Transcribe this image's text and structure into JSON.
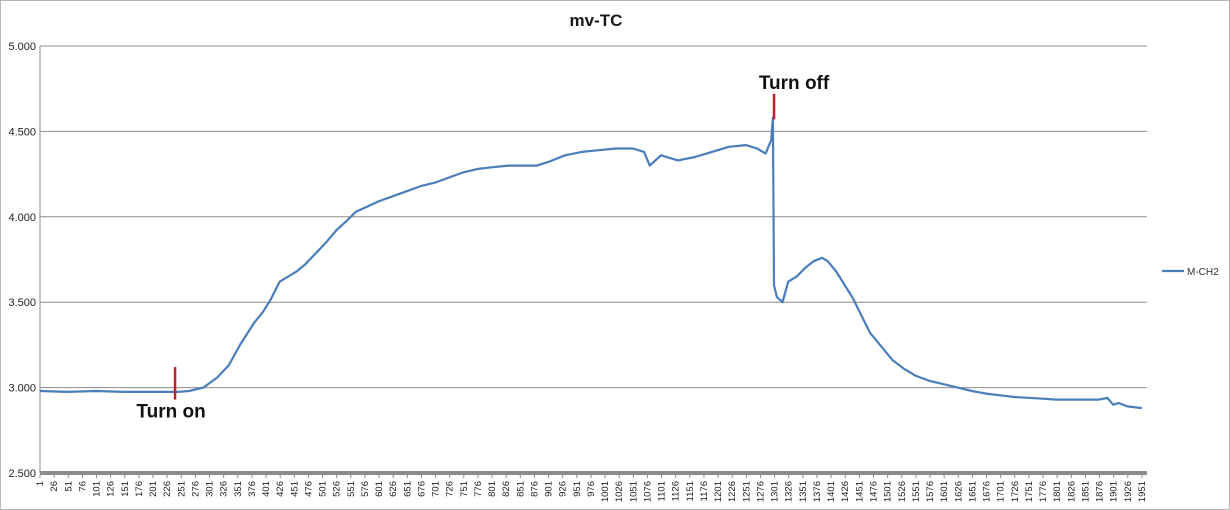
{
  "chart_data": {
    "type": "line",
    "title": "mv-TC",
    "xlabel": "",
    "ylabel": "",
    "ylim": [
      2.5,
      5.0
    ],
    "yticks": [
      "2.500",
      "3.000",
      "3.500",
      "4.000",
      "4.500",
      "5.000"
    ],
    "xlim": [
      1,
      1960
    ],
    "xtick_start": 1,
    "xtick_step": 25,
    "xtick_end": 1951,
    "grid": "horizontal",
    "legend_position": "right",
    "series": [
      {
        "name": "M-CH2",
        "color": "#4a7ebb",
        "points": [
          [
            1,
            2.98
          ],
          [
            50,
            2.975
          ],
          [
            100,
            2.98
          ],
          [
            150,
            2.975
          ],
          [
            200,
            2.975
          ],
          [
            245,
            2.975
          ],
          [
            265,
            2.98
          ],
          [
            290,
            3.0
          ],
          [
            315,
            3.06
          ],
          [
            335,
            3.13
          ],
          [
            355,
            3.25
          ],
          [
            380,
            3.38
          ],
          [
            395,
            3.44
          ],
          [
            410,
            3.52
          ],
          [
            425,
            3.62
          ],
          [
            445,
            3.66
          ],
          [
            455,
            3.68
          ],
          [
            470,
            3.72
          ],
          [
            490,
            3.79
          ],
          [
            510,
            3.86
          ],
          [
            525,
            3.92
          ],
          [
            545,
            3.98
          ],
          [
            560,
            4.03
          ],
          [
            580,
            4.06
          ],
          [
            600,
            4.09
          ],
          [
            625,
            4.12
          ],
          [
            650,
            4.15
          ],
          [
            675,
            4.18
          ],
          [
            700,
            4.2
          ],
          [
            725,
            4.23
          ],
          [
            750,
            4.26
          ],
          [
            775,
            4.28
          ],
          [
            800,
            4.29
          ],
          [
            830,
            4.3
          ],
          [
            860,
            4.3
          ],
          [
            880,
            4.3
          ],
          [
            900,
            4.32
          ],
          [
            930,
            4.36
          ],
          [
            960,
            4.38
          ],
          [
            990,
            4.39
          ],
          [
            1020,
            4.4
          ],
          [
            1050,
            4.4
          ],
          [
            1070,
            4.38
          ],
          [
            1080,
            4.3
          ],
          [
            1100,
            4.36
          ],
          [
            1130,
            4.33
          ],
          [
            1160,
            4.35
          ],
          [
            1190,
            4.38
          ],
          [
            1220,
            4.41
          ],
          [
            1250,
            4.42
          ],
          [
            1270,
            4.4
          ],
          [
            1285,
            4.37
          ],
          [
            1295,
            4.45
          ],
          [
            1298,
            4.58
          ],
          [
            1300,
            3.6
          ],
          [
            1305,
            3.53
          ],
          [
            1315,
            3.5
          ],
          [
            1325,
            3.62
          ],
          [
            1340,
            3.65
          ],
          [
            1355,
            3.7
          ],
          [
            1370,
            3.74
          ],
          [
            1385,
            3.76
          ],
          [
            1395,
            3.74
          ],
          [
            1410,
            3.68
          ],
          [
            1425,
            3.6
          ],
          [
            1440,
            3.52
          ],
          [
            1455,
            3.42
          ],
          [
            1470,
            3.32
          ],
          [
            1490,
            3.24
          ],
          [
            1510,
            3.16
          ],
          [
            1530,
            3.11
          ],
          [
            1550,
            3.07
          ],
          [
            1575,
            3.04
          ],
          [
            1600,
            3.02
          ],
          [
            1625,
            3.0
          ],
          [
            1650,
            2.98
          ],
          [
            1675,
            2.965
          ],
          [
            1700,
            2.955
          ],
          [
            1725,
            2.945
          ],
          [
            1750,
            2.94
          ],
          [
            1775,
            2.935
          ],
          [
            1800,
            2.93
          ],
          [
            1825,
            2.93
          ],
          [
            1850,
            2.93
          ],
          [
            1875,
            2.93
          ],
          [
            1890,
            2.94
          ],
          [
            1900,
            2.9
          ],
          [
            1910,
            2.91
          ],
          [
            1925,
            2.89
          ],
          [
            1951,
            2.88
          ]
        ]
      }
    ],
    "annotations": [
      {
        "text": "Turn on",
        "x": 240,
        "marker_y": [
          2.93,
          3.12
        ],
        "color": "#c0202a"
      },
      {
        "text": "Turn off",
        "x": 1300,
        "marker_y": [
          4.57,
          4.72
        ],
        "color": "#c0202a"
      }
    ]
  }
}
